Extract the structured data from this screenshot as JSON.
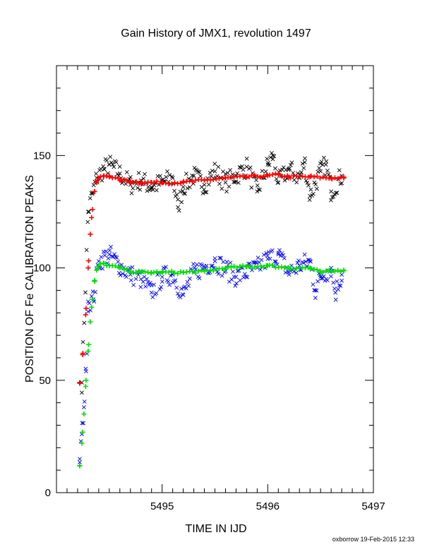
{
  "chart_data": {
    "type": "scatter",
    "title": "Gain History of JMX1, revolution 1497",
    "xlabel": "TIME IN IJD",
    "ylabel": "POSITION OF Fe CALIBRATION PEAKS",
    "xlim": [
      5494.0,
      5497.0
    ],
    "ylim": [
      0,
      190
    ],
    "x_ticks": [
      5495,
      5496,
      5497
    ],
    "y_ticks": [
      0,
      50,
      100,
      150
    ],
    "x_tick_labels": [
      "5495",
      "5496",
      "5497"
    ],
    "y_tick_labels": [
      "0",
      "50",
      "100",
      "150"
    ],
    "grid": false,
    "series": [
      {
        "marker": "x",
        "color": "#000000",
        "x": [
          5494.24,
          5494.3,
          5494.34,
          5494.38,
          5494.45,
          5494.5,
          5494.6,
          5494.7,
          5494.8,
          5494.9,
          5495.0,
          5495.1,
          5495.15,
          5495.2,
          5495.3,
          5495.4,
          5495.5,
          5495.6,
          5495.7,
          5495.8,
          5495.9,
          5496.0,
          5496.05,
          5496.1,
          5496.2,
          5496.3,
          5496.35,
          5496.4,
          5496.5,
          5496.55,
          5496.6,
          5496.7
        ],
        "y": [
          49,
          125,
          133,
          140,
          144,
          146,
          142,
          137,
          139,
          136,
          138,
          140,
          127,
          136,
          141,
          137,
          143,
          138,
          141,
          145,
          134,
          146,
          150,
          138,
          144,
          140,
          147,
          132,
          143,
          146,
          134,
          141
        ]
      },
      {
        "marker": "+",
        "color": "#ff0000",
        "x": [
          5494.22,
          5494.25,
          5494.28,
          5494.3,
          5494.32,
          5494.34,
          5494.36,
          5494.38,
          5494.4,
          5494.45,
          5494.5,
          5494.6,
          5494.7,
          5494.8,
          5494.9,
          5495.0,
          5495.2,
          5495.4,
          5495.6,
          5495.8,
          5496.0,
          5496.1,
          5496.2,
          5496.4,
          5496.6,
          5496.72
        ],
        "y": [
          49,
          62,
          82,
          100,
          115,
          126,
          134,
          138,
          140,
          141,
          141,
          139,
          138.5,
          138,
          138,
          138,
          138,
          139,
          140,
          140.5,
          141,
          141.5,
          140.5,
          140.5,
          140,
          140
        ]
      },
      {
        "marker": "x",
        "color": "#0000ff",
        "x": [
          5494.22,
          5494.24,
          5494.26,
          5494.28,
          5494.3,
          5494.35,
          5494.4,
          5494.5,
          5494.6,
          5494.7,
          5494.8,
          5494.9,
          5495.0,
          5495.1,
          5495.2,
          5495.3,
          5495.5,
          5495.7,
          5495.9,
          5496.0,
          5496.1,
          5496.2,
          5496.3,
          5496.4,
          5496.45,
          5496.5,
          5496.6,
          5496.64,
          5496.7
        ],
        "y": [
          15,
          26,
          38,
          54,
          85,
          86,
          103,
          106,
          101,
          97,
          95,
          89,
          96,
          97,
          88,
          98,
          103,
          96,
          100,
          104,
          106,
          98,
          101,
          103,
          90,
          96,
          100,
          89,
          97
        ]
      },
      {
        "marker": "+",
        "color": "#00dd00",
        "x": [
          5494.22,
          5494.24,
          5494.26,
          5494.28,
          5494.3,
          5494.32,
          5494.34,
          5494.36,
          5494.38,
          5494.4,
          5494.45,
          5494.5,
          5494.6,
          5494.7,
          5494.8,
          5494.9,
          5495.0,
          5495.2,
          5495.4,
          5495.6,
          5495.8,
          5496.0,
          5496.2,
          5496.4,
          5496.5,
          5496.6,
          5496.72
        ],
        "y": [
          12,
          22,
          35,
          50,
          63,
          76,
          86,
          94,
          99,
          101,
          102,
          101,
          100,
          98.5,
          98,
          98,
          98,
          98,
          98.5,
          100,
          100.5,
          101,
          100,
          100,
          98,
          98.5,
          99
        ]
      }
    ],
    "footer": "oxborrow 19-Feb-2015 12:33"
  }
}
